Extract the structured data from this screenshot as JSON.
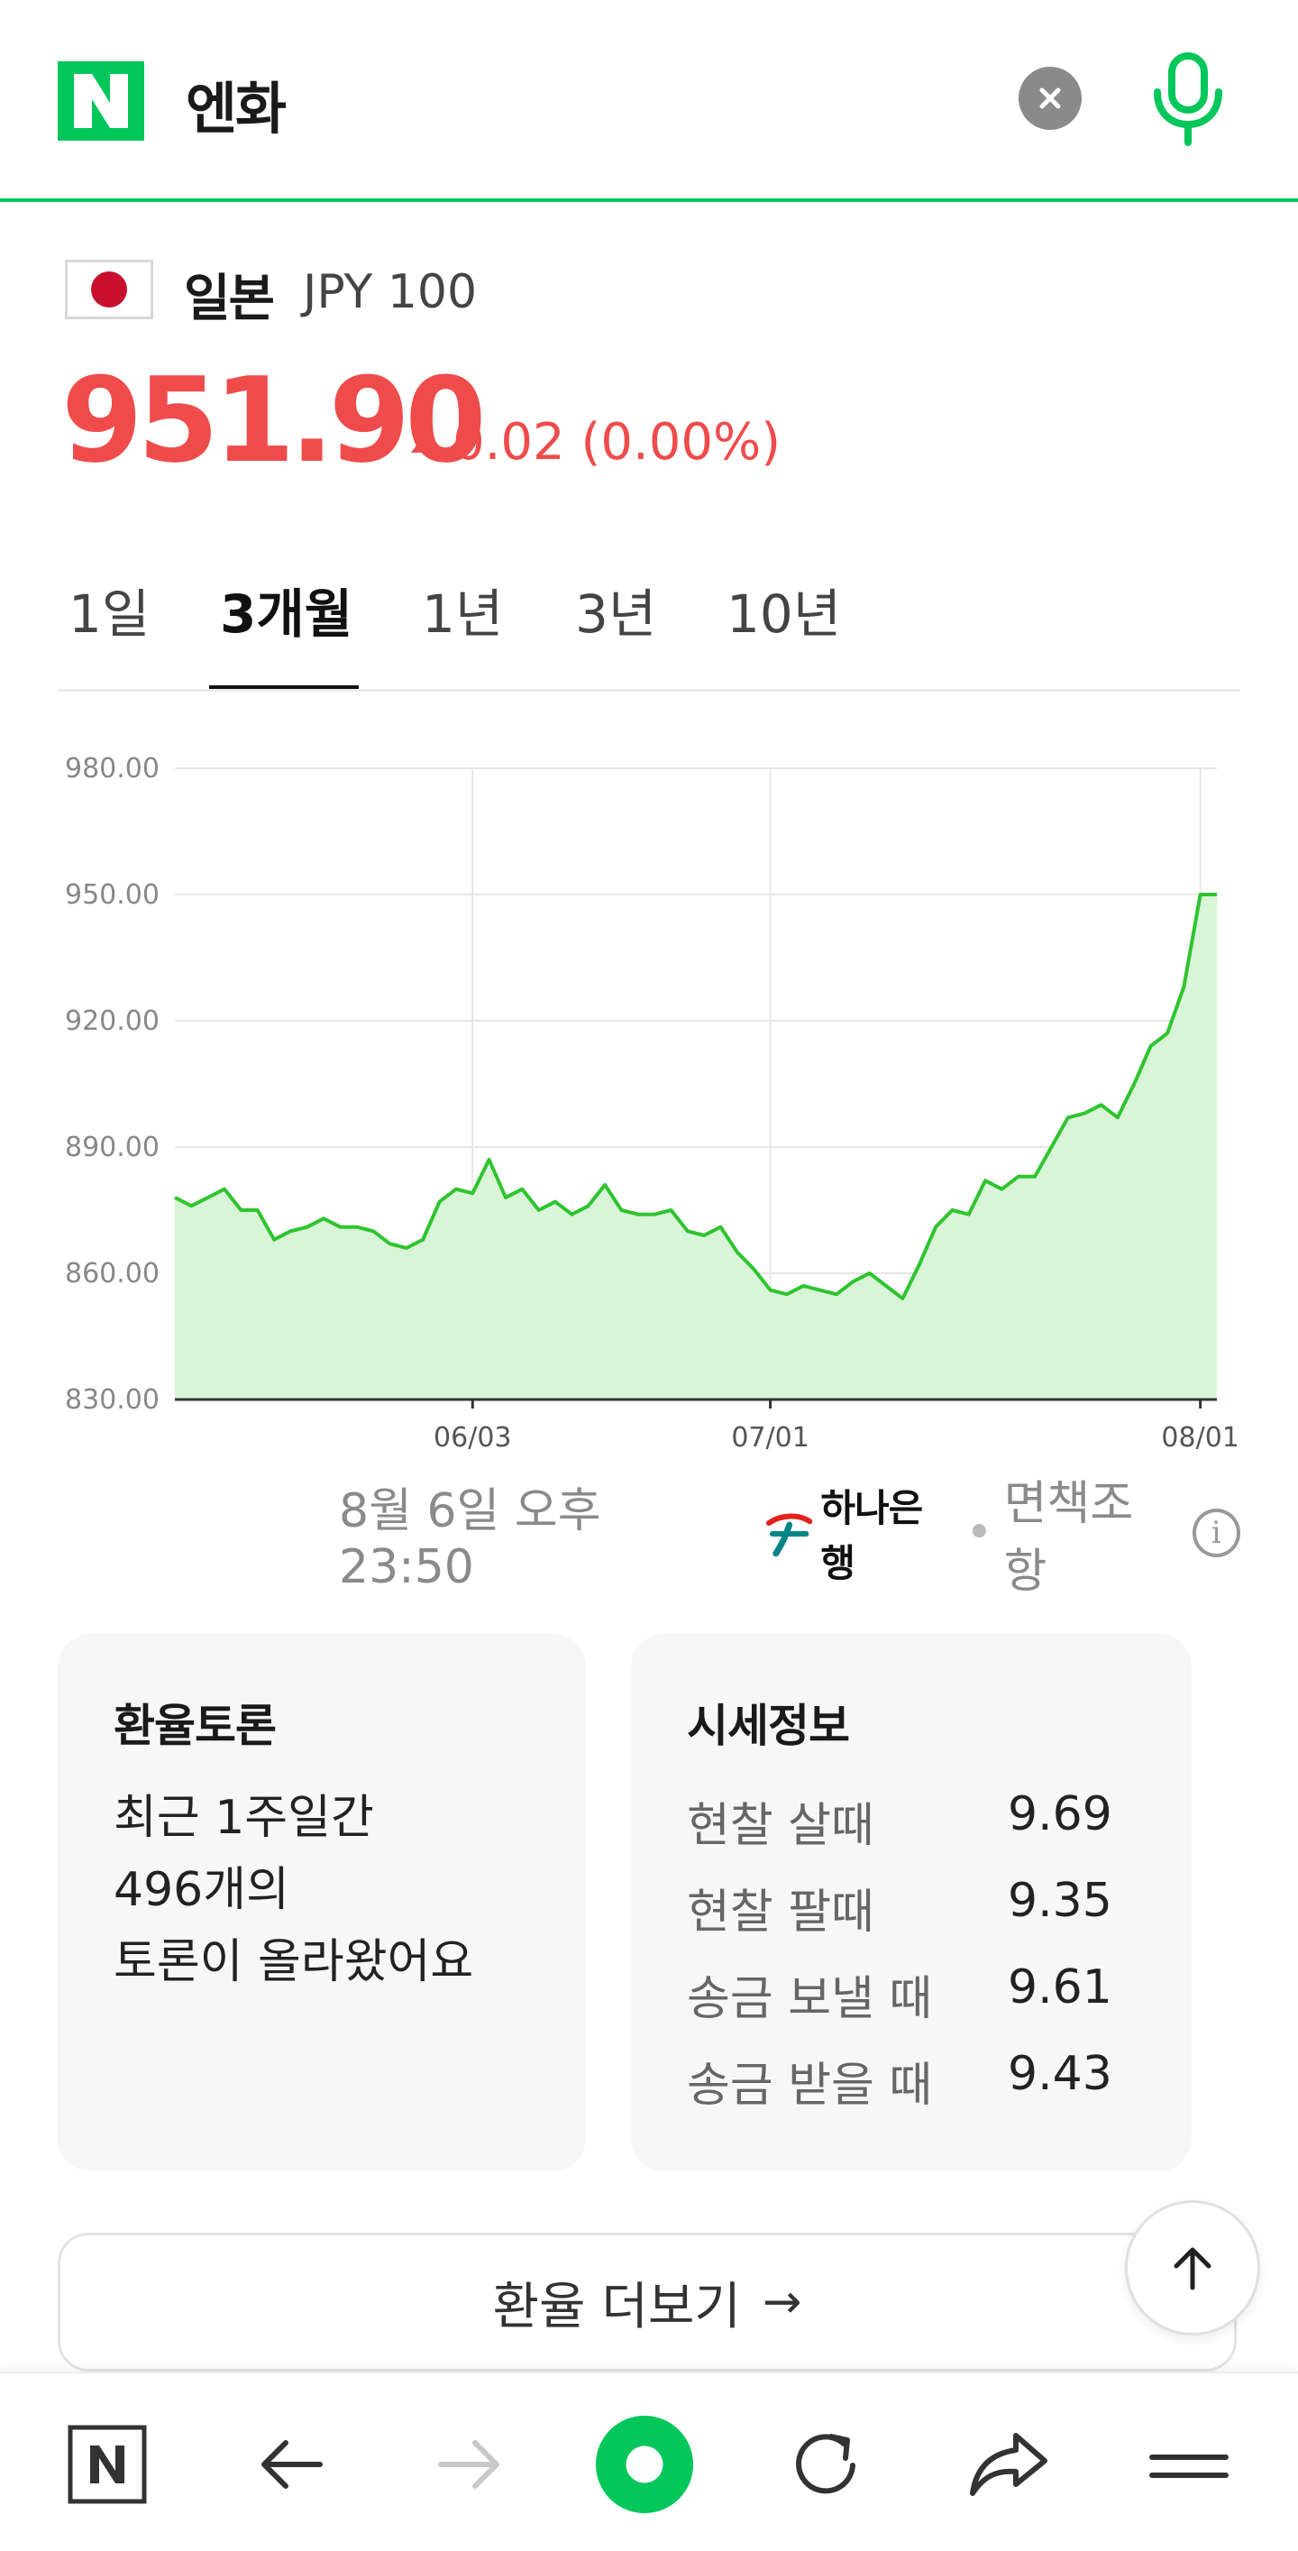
{
  "search": {
    "query": "엔화"
  },
  "currency": {
    "country": "일본",
    "code": "JPY 100",
    "price": "951.90",
    "change": "0.02 (0.00%)",
    "direction": "up"
  },
  "tabs": [
    {
      "label": "1일",
      "active": false
    },
    {
      "label": "3개월",
      "active": true
    },
    {
      "label": "1년",
      "active": false
    },
    {
      "label": "3년",
      "active": false
    },
    {
      "label": "10년",
      "active": false
    }
  ],
  "chart_data": {
    "type": "area",
    "ylim": [
      830,
      980
    ],
    "yticks": [
      "980.00",
      "950.00",
      "920.00",
      "890.00",
      "860.00",
      "830.00"
    ],
    "xticks": [
      "06/03",
      "07/01",
      "08/01"
    ],
    "color": "#2fc42f",
    "fill": "#d8f5d8",
    "series": [
      {
        "values": [
          878,
          876,
          878,
          880,
          875,
          875,
          868,
          870,
          871,
          873,
          871,
          871,
          870,
          867,
          866,
          868,
          877,
          880,
          879,
          887,
          878,
          880,
          875,
          877,
          874,
          876,
          881,
          875,
          874,
          874,
          875,
          870,
          869,
          871,
          865,
          861,
          856,
          855,
          857,
          856,
          855,
          858,
          860,
          857,
          854,
          862,
          871,
          875,
          874,
          882,
          880,
          883,
          883,
          890,
          897,
          898,
          900,
          897,
          905,
          914,
          917,
          928,
          950,
          950
        ]
      }
    ]
  },
  "source": {
    "timestamp": "8월 6일 오후 23:50",
    "bank": "하나은행",
    "disclaimer": "면책조항"
  },
  "discussion_card": {
    "title": "환율토론",
    "line1": "최근 1주일간",
    "line2": "496개의",
    "line3": "토론이 올라왔어요"
  },
  "quote_card": {
    "title": "시세정보",
    "rows": [
      {
        "label": "현찰 살때",
        "value": "9.69"
      },
      {
        "label": "현찰 팔때",
        "value": "9.35"
      },
      {
        "label": "송금 보낼 때",
        "value": "9.61"
      },
      {
        "label": "송금 받을 때",
        "value": "9.43"
      }
    ]
  },
  "more_button": {
    "label": "환율 더보기",
    "arrow": "→"
  },
  "colors": {
    "brand": "#03c75a",
    "up": "#f04b4b",
    "chart_line": "#2fc42f"
  }
}
